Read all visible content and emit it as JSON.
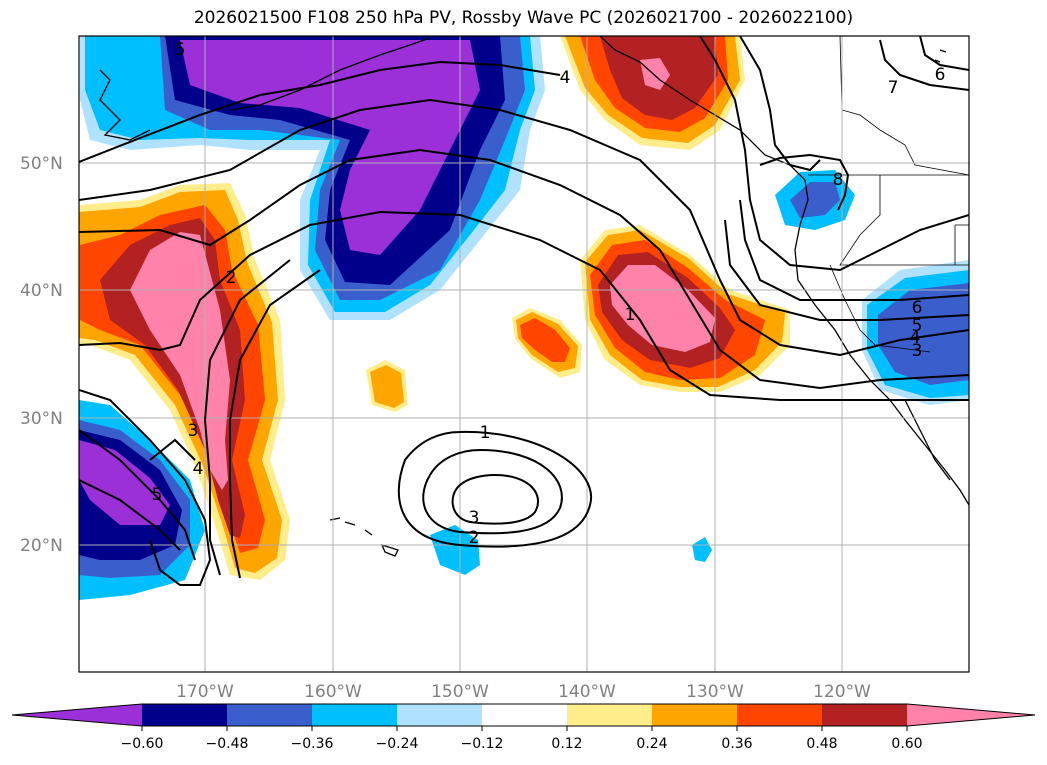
{
  "title": "2026021500 F108 250 hPa PV, Rossby Wave PC (2026021700 - 2026022100)",
  "map": {
    "lat_labels": [
      "50°N",
      "40°N",
      "30°N",
      "20°N"
    ],
    "lon_labels": [
      "170°W",
      "160°W",
      "150°W",
      "140°W",
      "130°W",
      "120°W"
    ]
  },
  "colorbar": {
    "colors": [
      "#9b30d9",
      "#00008b",
      "#3a5fcd",
      "#00bfff",
      "#b0e2ff",
      "#ffffff",
      "#ffec8b",
      "#ffa500",
      "#ff4500",
      "#b22222",
      "#ff82ab"
    ],
    "tick_labels": [
      "−0.60",
      "−0.48",
      "−0.36",
      "−0.24",
      "−0.12",
      "0.12",
      "0.24",
      "0.36",
      "0.48",
      "0.60"
    ]
  },
  "contour_labels": [
    "5",
    "4",
    "2",
    "1",
    "3",
    "4",
    "5",
    "1",
    "3",
    "2",
    "7",
    "6",
    "8",
    "6",
    "5",
    "4",
    "3"
  ],
  "palette": {
    "grid": "#b0b0b0",
    "tick_text": "#808080"
  }
}
